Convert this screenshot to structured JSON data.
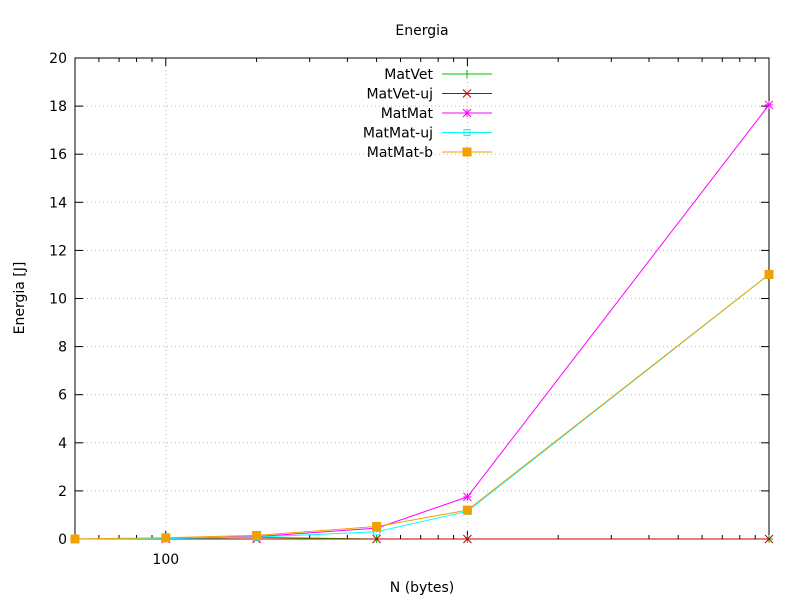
{
  "chart_data": {
    "type": "line",
    "title": "Energia",
    "xlabel": "N (bytes)",
    "ylabel": "Energia [J]",
    "x_scale": "log",
    "xlim": [
      50,
      10000
    ],
    "ylim": [
      0,
      20
    ],
    "y_ticks": [
      0,
      2,
      4,
      6,
      8,
      10,
      12,
      14,
      16,
      18,
      20
    ],
    "x_ticks": [
      {
        "value": 100,
        "label": "100"
      }
    ],
    "grid": true,
    "legend_position": "top-center",
    "x": [
      50,
      100,
      200,
      500,
      1000,
      10000
    ],
    "series": [
      {
        "name": "MatVet",
        "color": "#00c000",
        "marker": "plus",
        "values": [
          0.0,
          0.02,
          0.07,
          0.0,
          0.0,
          0.0
        ]
      },
      {
        "name": "MatVet-uj",
        "color": "#c00000",
        "marker": "cross",
        "values": [
          0.0,
          0.0,
          0.0,
          0.0,
          0.0,
          0.0
        ]
      },
      {
        "name": "MatMat",
        "color": "#ff00ff",
        "marker": "star",
        "values": [
          0.0,
          0.02,
          0.1,
          0.45,
          1.75,
          18.05
        ]
      },
      {
        "name": "MatMat-uj",
        "color": "#00ffff",
        "marker": "open-square",
        "values": [
          0.0,
          0.02,
          0.08,
          0.3,
          1.15,
          11.0
        ]
      },
      {
        "name": "MatMat-b",
        "color": "#f0a000",
        "marker": "filled-square",
        "values": [
          0.0,
          0.05,
          0.15,
          0.52,
          1.2,
          11.0
        ]
      }
    ]
  }
}
